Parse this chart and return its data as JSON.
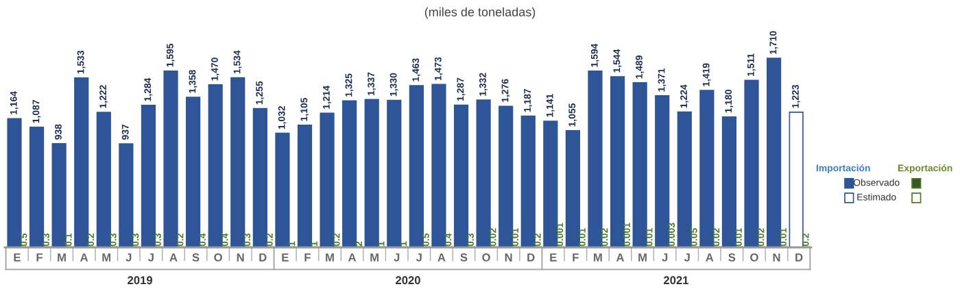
{
  "chart_data": {
    "type": "bar",
    "title": "(miles de toneladas)",
    "categories": [
      "E",
      "F",
      "M",
      "A",
      "M",
      "J",
      "J",
      "A",
      "S",
      "O",
      "N",
      "D",
      "E",
      "F",
      "M",
      "A",
      "M",
      "J",
      "J",
      "A",
      "S",
      "O",
      "N",
      "D",
      "E",
      "F",
      "M",
      "A",
      "M",
      "J",
      "J",
      "A",
      "S",
      "O",
      "N",
      "D"
    ],
    "series": [
      {
        "name": "Importación",
        "color": "#2e5597",
        "colors": [
          "#2e5597",
          "#2e5597",
          "#2e5597",
          "#2e5597",
          "#2e5597",
          "#2e5597",
          "#2e5597",
          "#2e5597",
          "#2e5597",
          "#2e5597",
          "#2e5597",
          "#2e5597",
          "#2e5597",
          "#2e5597",
          "#2e5597",
          "#2e5597",
          "#2e5597",
          "#2e5597",
          "#2e5597",
          "#2e5597",
          "#2e5597",
          "#2e5597",
          "#2e5597",
          "#2e5597",
          "#2e5597",
          "#2e5597",
          "#2e5597",
          "#2e5597",
          "#2e5597",
          "#2e5597",
          "#2e5597",
          "#2e5597",
          "#2e5597",
          "#2e5597",
          "#2e5597",
          "#ffffff"
        ],
        "value_labels": [
          "1,164",
          "1,087",
          "938",
          "1,533",
          "1,222",
          "937",
          "1,284",
          "1,595",
          "1,358",
          "1,470",
          "1,534",
          "1,255",
          "1,032",
          "1,105",
          "1,214",
          "1,325",
          "1,337",
          "1,330",
          "1,463",
          "1,473",
          "1,287",
          "1,332",
          "1,276",
          "1,187",
          "1,141",
          "1,055",
          "1,594",
          "1,544",
          "1,489",
          "1,371",
          "1,224",
          "1,419",
          "1,180",
          "1,511",
          "1,710",
          "1,223"
        ],
        "values": [
          1164,
          1087,
          938,
          1533,
          1222,
          937,
          1284,
          1595,
          1358,
          1470,
          1534,
          1255,
          1032,
          1105,
          1214,
          1325,
          1337,
          1330,
          1463,
          1473,
          1287,
          1332,
          1276,
          1187,
          1141,
          1055,
          1594,
          1544,
          1489,
          1371,
          1224,
          1419,
          1180,
          1511,
          1710,
          1223
        ]
      },
      {
        "name": "Exportación",
        "color": "#4a7a2a",
        "colors": [
          "#4a7a2a",
          "#4a7a2a",
          "#4a7a2a",
          "#4a7a2a",
          "#4a7a2a",
          "#4a7a2a",
          "#4a7a2a",
          "#4a7a2a",
          "#4a7a2a",
          "#4a7a2a",
          "#4a7a2a",
          "#4a7a2a",
          "#4a7a2a",
          "#4a7a2a",
          "#4a7a2a",
          "#4a7a2a",
          "#4a7a2a",
          "#4a7a2a",
          "#4a7a2a",
          "#4a7a2a",
          "#4a7a2a",
          "#4a7a2a",
          "#4a7a2a",
          "#4a7a2a",
          "#4a7a2a",
          "#4a7a2a",
          "#4a7a2a",
          "#4a7a2a",
          "#4a7a2a",
          "#4a7a2a",
          "#4a7a2a",
          "#4a7a2a",
          "#4a7a2a",
          "#4a7a2a",
          "#4a7a2a",
          "#ffffff"
        ],
        "value_labels": [
          "0.5",
          "0.3",
          "0.1",
          "0.2",
          "0.3",
          "0.3",
          "0.3",
          "0.2",
          "0.4",
          "0.4",
          "0.3",
          "0.2",
          "1",
          "1",
          "0.2",
          "2",
          "1",
          "1",
          "0.5",
          "0.4",
          "0.3",
          "0.02",
          "0.01",
          "0.2",
          "0.001",
          "0.01",
          "0.02",
          "0.001",
          "0.01",
          "0.003",
          "0.05",
          "0.02",
          "0.01",
          "0.02",
          "0.01",
          "0.2"
        ],
        "values": [
          0.5,
          0.3,
          0.1,
          0.2,
          0.3,
          0.3,
          0.3,
          0.2,
          0.4,
          0.4,
          0.3,
          0.2,
          1,
          1,
          0.2,
          2,
          1,
          1,
          0.5,
          0.4,
          0.3,
          0.02,
          0.01,
          0.2,
          0.001,
          0.01,
          0.02,
          0.001,
          0.01,
          0.003,
          0.05,
          0.02,
          0.01,
          0.02,
          0.01,
          0.2
        ]
      }
    ],
    "annotations": [
      "2019",
      "2020",
      "2021",
      "Observado",
      "Estimado"
    ],
    "legend": "right",
    "grid": false
  }
}
